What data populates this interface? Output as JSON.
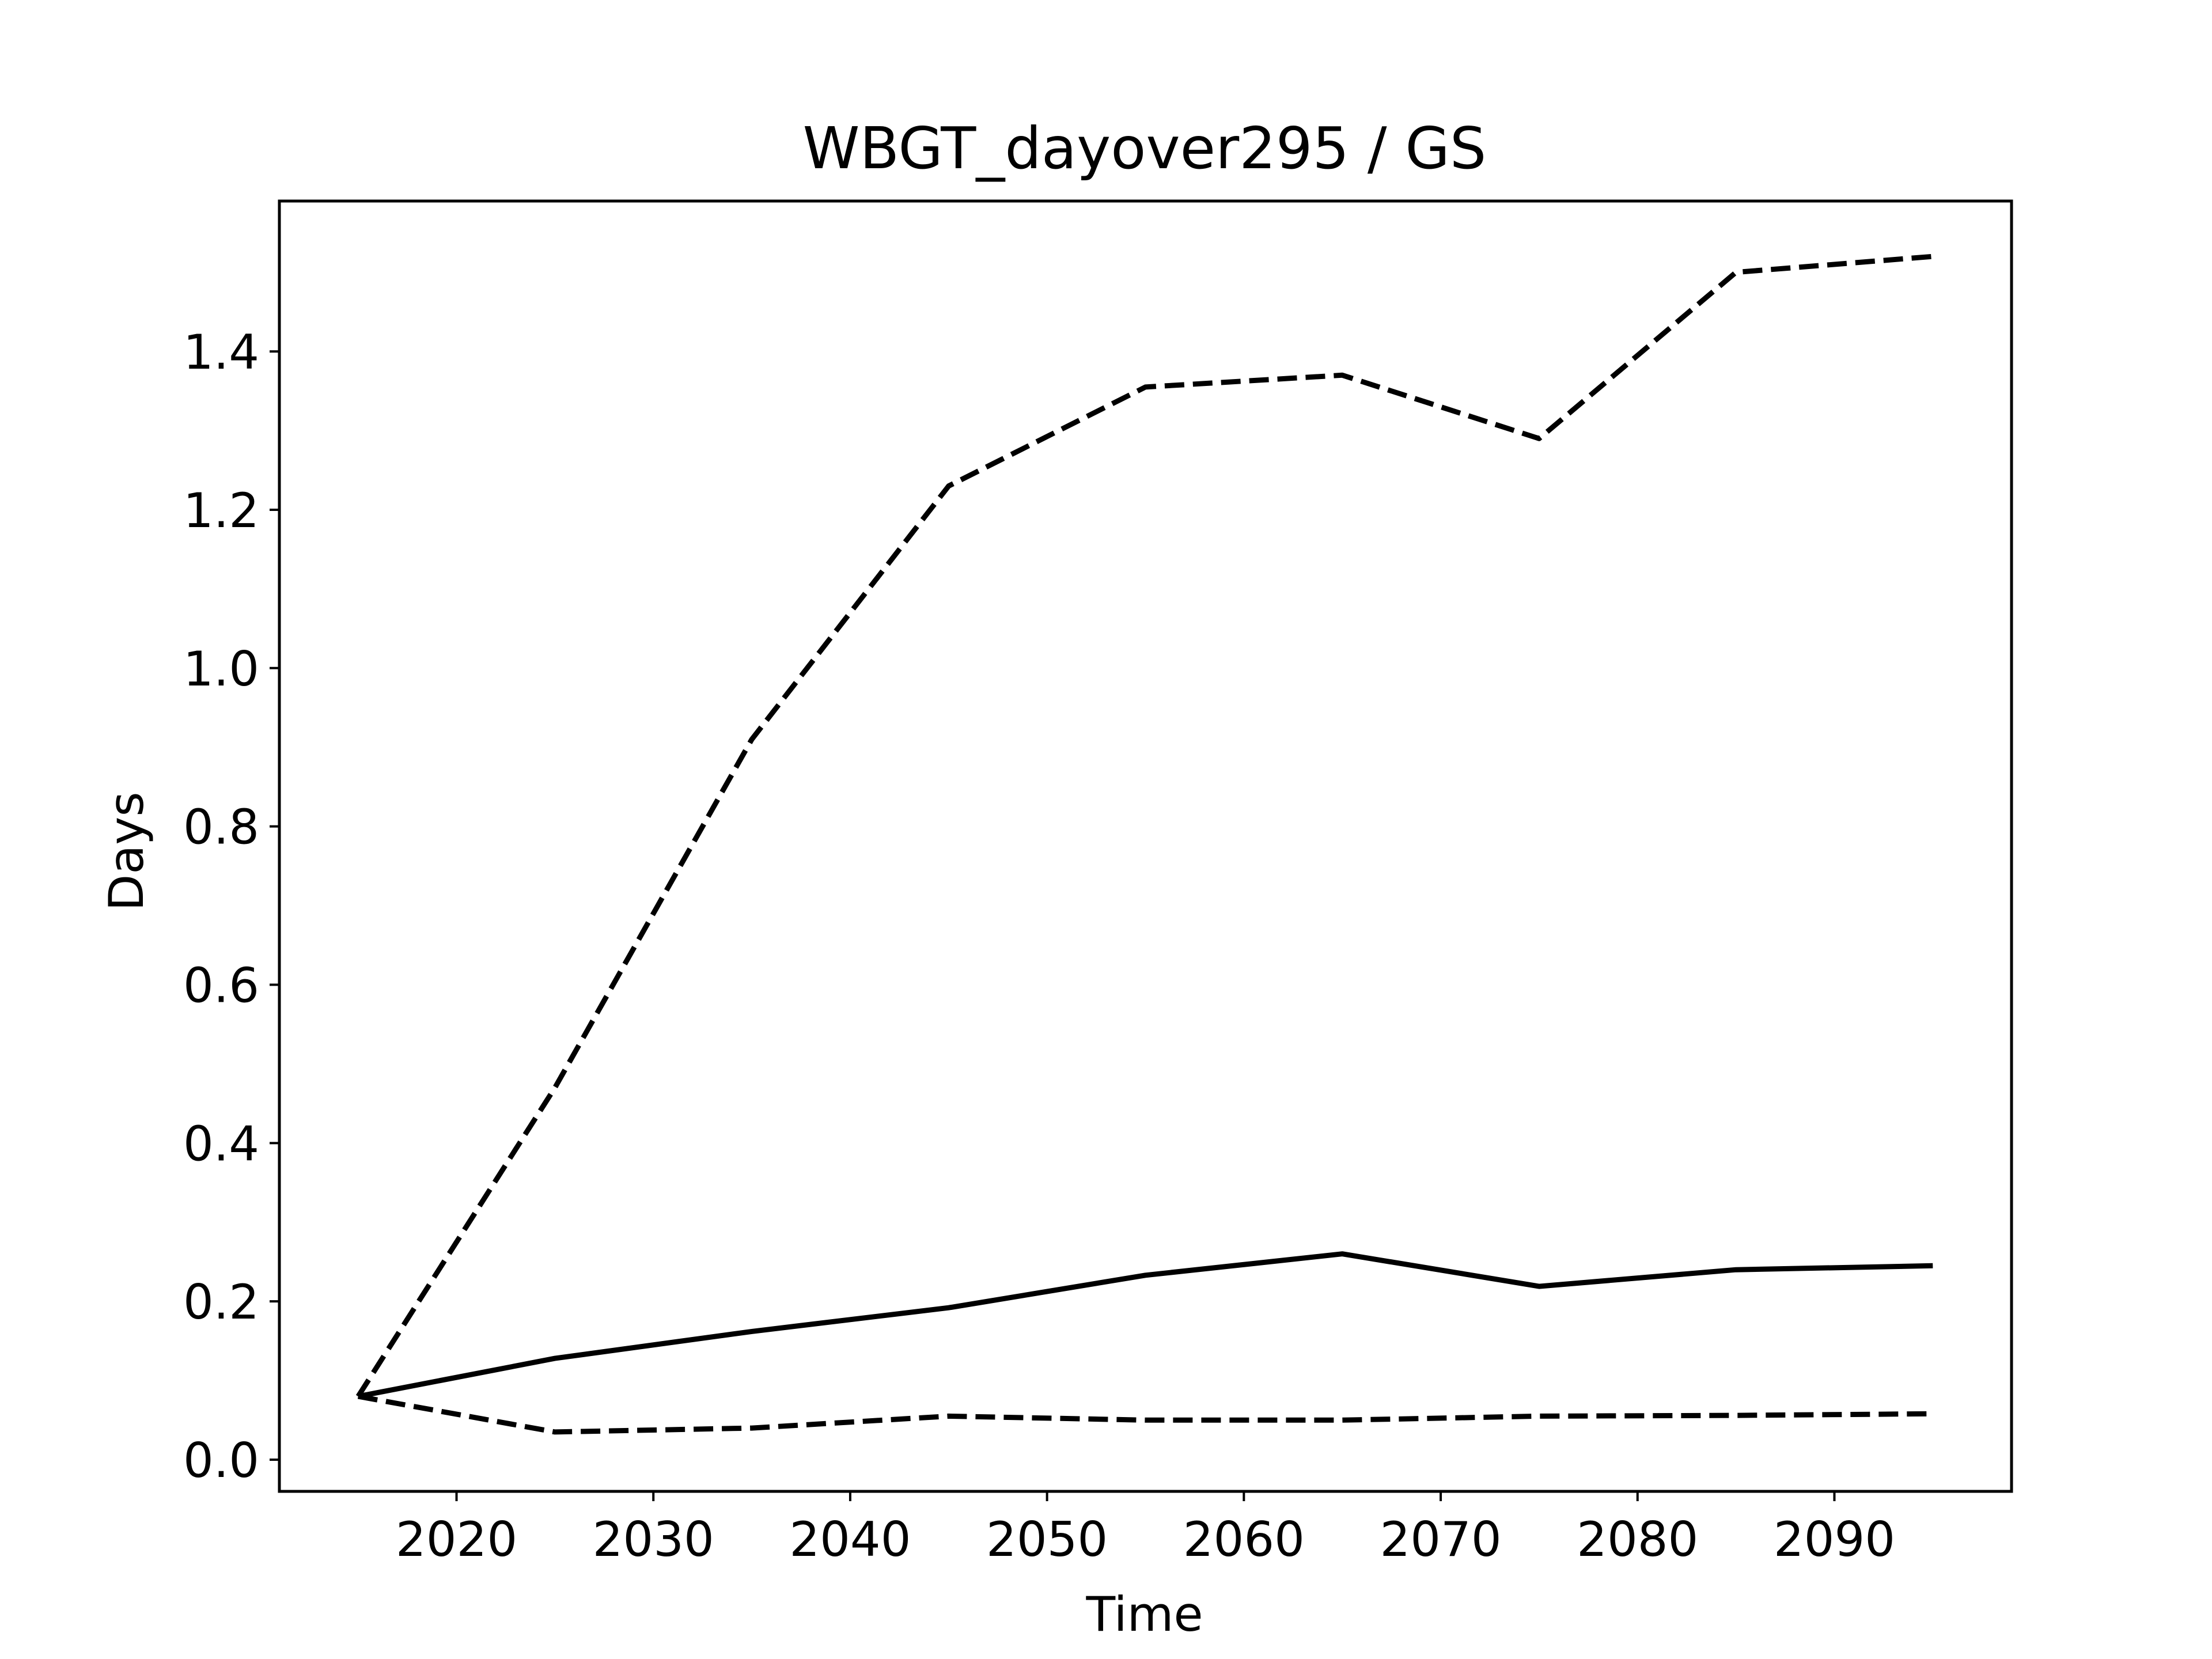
{
  "chart_data": {
    "type": "line",
    "title": "WBGT_dayover295 / GS",
    "xlabel": "Time",
    "ylabel": "Days",
    "xlim": [
      2011,
      2099
    ],
    "ylim": [
      -0.04,
      1.59
    ],
    "x_ticks": [
      2020,
      2030,
      2040,
      2050,
      2060,
      2070,
      2080,
      2090
    ],
    "y_ticks": [
      0.0,
      0.2,
      0.4,
      0.6,
      0.8,
      1.0,
      1.2,
      1.4
    ],
    "y_tick_labels": [
      "0.0",
      "0.2",
      "0.4",
      "0.6",
      "0.8",
      "1.0",
      "1.2",
      "1.4"
    ],
    "grid": false,
    "x": [
      2015,
      2025,
      2035,
      2045,
      2055,
      2065,
      2075,
      2085,
      2095
    ],
    "series": [
      {
        "style": "dashed",
        "color": "#000000",
        "values": [
          0.08,
          0.47,
          0.91,
          1.23,
          1.355,
          1.37,
          1.29,
          1.5,
          1.52
        ]
      },
      {
        "style": "solid",
        "color": "#000000",
        "values": [
          0.08,
          0.128,
          0.162,
          0.192,
          0.233,
          0.26,
          0.219,
          0.24,
          0.245
        ]
      },
      {
        "style": "dashed",
        "color": "#000000",
        "values": [
          0.08,
          0.035,
          0.04,
          0.055,
          0.05,
          0.05,
          0.055,
          0.056,
          0.058
        ]
      }
    ]
  }
}
